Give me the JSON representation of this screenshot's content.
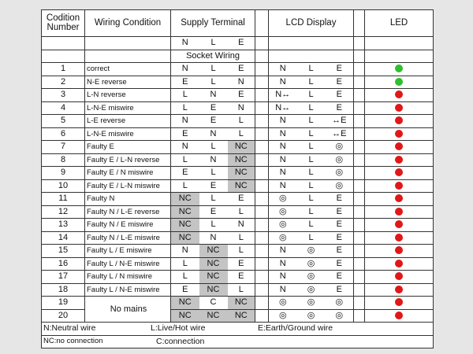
{
  "header": {
    "number": "Codition Number",
    "wiring": "Wiring Condition",
    "supply": "Supply Terminal",
    "lcd": "LCD Display",
    "led": "LED",
    "supply_sub": [
      "N",
      "L",
      "E"
    ],
    "socket": "Socket Wiring"
  },
  "rows": [
    {
      "number": 1,
      "wiring": "correct",
      "supply": [
        "N",
        "L",
        "E"
      ],
      "lcd": [
        "N",
        "L",
        "E"
      ],
      "led": "#2fbf2f"
    },
    {
      "number": 2,
      "wiring": "N-E reverse",
      "supply": [
        "E",
        "L",
        "N"
      ],
      "lcd": [
        "N",
        "L",
        "E"
      ],
      "led": "#2fbf2f"
    },
    {
      "number": 3,
      "wiring": "L-N reverse",
      "supply": [
        "L",
        "N",
        "E"
      ],
      "lcd": [
        "N↔",
        "L",
        "E"
      ],
      "led": "#e01818"
    },
    {
      "number": 4,
      "wiring": "L-N-E miswire",
      "supply": [
        "L",
        "E",
        "N"
      ],
      "lcd": [
        "N↔",
        "L",
        "E"
      ],
      "led": "#e01818"
    },
    {
      "number": 5,
      "wiring": "L-E reverse",
      "supply": [
        "N",
        "E",
        "L"
      ],
      "lcd": [
        "N",
        "L",
        "↔E"
      ],
      "led": "#e01818"
    },
    {
      "number": 6,
      "wiring": "L-N-E miswire",
      "supply": [
        "E",
        "N",
        "L"
      ],
      "lcd": [
        "N",
        "L",
        "↔E"
      ],
      "led": "#e01818"
    },
    {
      "number": 7,
      "wiring": "Faulty E",
      "supply": [
        "N",
        "L",
        "NC"
      ],
      "lcd": [
        "N",
        "L",
        "◎"
      ],
      "led": "#e01818"
    },
    {
      "number": 8,
      "wiring": "Faulty E / L-N reverse",
      "supply": [
        "L",
        "N",
        "NC"
      ],
      "lcd": [
        "N",
        "L",
        "◎"
      ],
      "led": "#e01818"
    },
    {
      "number": 9,
      "wiring": "Faulty E / N miswire",
      "supply": [
        "E",
        "L",
        "NC"
      ],
      "lcd": [
        "N",
        "L",
        "◎"
      ],
      "led": "#e01818"
    },
    {
      "number": 10,
      "wiring": "Faulty E / L-N miswire",
      "supply": [
        "L",
        "E",
        "NC"
      ],
      "lcd": [
        "N",
        "L",
        "◎"
      ],
      "led": "#e01818"
    },
    {
      "number": 11,
      "wiring": "Faulty N",
      "supply": [
        "NC",
        "L",
        "E"
      ],
      "lcd": [
        "◎",
        "L",
        "E"
      ],
      "led": "#e01818"
    },
    {
      "number": 12,
      "wiring": "Faulty N / L-E reverse",
      "supply": [
        "NC",
        "E",
        "L"
      ],
      "lcd": [
        "◎",
        "L",
        "E"
      ],
      "led": "#e01818"
    },
    {
      "number": 13,
      "wiring": "Faulty N / E miswire",
      "supply": [
        "NC",
        "L",
        "N"
      ],
      "lcd": [
        "◎",
        "L",
        "E"
      ],
      "led": "#e01818"
    },
    {
      "number": 14,
      "wiring": "Faulty N / L-E miswire",
      "supply": [
        "NC",
        "N",
        "L"
      ],
      "lcd": [
        "◎",
        "L",
        "E"
      ],
      "led": "#e01818"
    },
    {
      "number": 15,
      "wiring": "Faulty L / E miswire",
      "supply": [
        "N",
        "NC",
        "L"
      ],
      "lcd": [
        "N",
        "◎",
        "E"
      ],
      "led": "#e01818"
    },
    {
      "number": 16,
      "wiring": "Faulty L / N-E miswire",
      "supply": [
        "L",
        "NC",
        "E"
      ],
      "lcd": [
        "N",
        "◎",
        "E"
      ],
      "led": "#e01818"
    },
    {
      "number": 17,
      "wiring": "Faulty L / N miswire",
      "supply": [
        "L",
        "NC",
        "E"
      ],
      "lcd": [
        "N",
        "◎",
        "E"
      ],
      "led": "#e01818"
    },
    {
      "number": 18,
      "wiring": "Faulty L / N-E miswire",
      "supply": [
        "E",
        "NC",
        "L"
      ],
      "lcd": [
        "N",
        "◎",
        "E"
      ],
      "led": "#e01818"
    },
    {
      "number": 19,
      "wiring": "No mains",
      "supply": [
        "NC",
        "C",
        "NC"
      ],
      "lcd": [
        "◎",
        "◎",
        "◎"
      ],
      "led": "#e01818"
    },
    {
      "number": 20,
      "supply": [
        "NC",
        "NC",
        "NC"
      ],
      "lcd": [
        "◎",
        "◎",
        "◎"
      ],
      "led": "#e01818"
    }
  ],
  "legend": [
    [
      "N:Neutral wire",
      "L:Live/Hot wire",
      "E:Earth/Ground wire"
    ],
    [
      "NC:no connection",
      "C:connection"
    ]
  ]
}
